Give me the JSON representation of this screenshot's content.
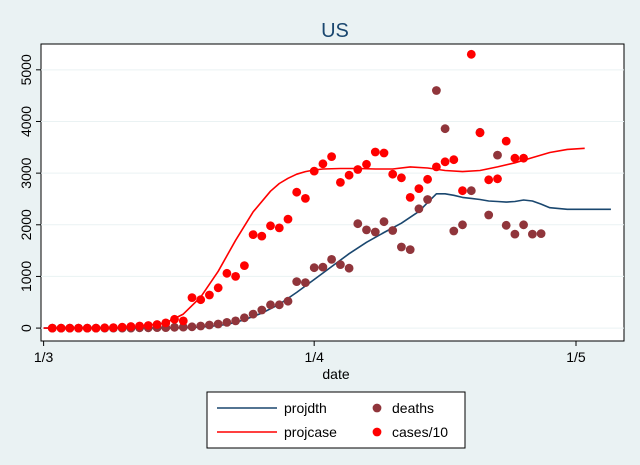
{
  "chart_data": {
    "type": "line",
    "title": "US",
    "xlabel": "date",
    "ylabel": "",
    "x_ticks": [
      {
        "label": "1/3",
        "day": 0
      },
      {
        "label": "1/4",
        "day": 31
      },
      {
        "label": "1/5",
        "day": 61
      }
    ],
    "xlim": [
      -0.3,
      66.5
    ],
    "y_ticks": [
      0,
      1000,
      2000,
      3000,
      4000,
      5000
    ],
    "ylim": [
      -250,
      5500
    ],
    "grid": true,
    "legend_position": "bottom",
    "series": [
      {
        "name": "projdth",
        "kind": "line",
        "color": "#1a476f",
        "x": [
          0,
          5,
          10,
          15,
          17,
          19,
          21,
          23,
          25,
          27,
          29,
          31,
          33,
          35,
          37,
          39,
          41,
          43,
          44,
          45,
          46,
          47,
          48,
          49,
          50,
          51,
          52,
          53,
          54,
          55,
          56,
          57,
          58,
          60,
          62,
          64,
          65
        ],
        "y": [
          0,
          0,
          0,
          3,
          10,
          30,
          70,
          160,
          290,
          460,
          690,
          940,
          1190,
          1440,
          1660,
          1850,
          2030,
          2260,
          2430,
          2600,
          2600,
          2570,
          2530,
          2510,
          2490,
          2460,
          2450,
          2440,
          2450,
          2480,
          2460,
          2400,
          2330,
          2300,
          2300,
          2300,
          2300
        ]
      },
      {
        "name": "deaths",
        "kind": "scatter",
        "color": "#90353b",
        "x": [
          1,
          2,
          3,
          4,
          5,
          6,
          7,
          8,
          9,
          10,
          11,
          12,
          13,
          14,
          15,
          16,
          17,
          18,
          19,
          20,
          21,
          22,
          23,
          24,
          25,
          26,
          27,
          28,
          29,
          30,
          31,
          32,
          33,
          34,
          35,
          36,
          37,
          38,
          39,
          40,
          41,
          42,
          43,
          44,
          45,
          46,
          47,
          48,
          49,
          50,
          51,
          52,
          53,
          54,
          55,
          56,
          57
        ],
        "y": [
          0,
          0,
          0,
          0,
          0,
          0,
          0,
          0,
          0,
          0,
          5,
          5,
          10,
          10,
          15,
          20,
          25,
          40,
          60,
          80,
          110,
          140,
          200,
          270,
          350,
          450,
          450,
          520,
          900,
          880,
          1170,
          1180,
          1330,
          1230,
          1160,
          2020,
          1900,
          1860,
          2060,
          1890,
          1570,
          1520,
          2310,
          2490,
          4600,
          3860,
          1880,
          2000,
          2660,
          3790,
          2190,
          3350,
          1990,
          1820,
          2000,
          1820,
          1830
        ]
      },
      {
        "name": "projcase",
        "kind": "line",
        "color": "#ff0000",
        "x": [
          0,
          5,
          10,
          14,
          16,
          18,
          20,
          22,
          24,
          26,
          27,
          28,
          29,
          30,
          31,
          32,
          34,
          36,
          38,
          40,
          42,
          44,
          46,
          48,
          50,
          52,
          54,
          56,
          58,
          60,
          62
        ],
        "y": [
          0,
          0,
          10,
          100,
          270,
          600,
          1100,
          1700,
          2250,
          2650,
          2800,
          2900,
          2980,
          3030,
          3060,
          3080,
          3090,
          3090,
          3080,
          3080,
          3120,
          3100,
          3050,
          3030,
          3050,
          3120,
          3200,
          3300,
          3400,
          3460,
          3480
        ]
      },
      {
        "name": "cases/10",
        "kind": "scatter",
        "color": "#ff0000",
        "x": [
          1,
          2,
          3,
          4,
          5,
          6,
          7,
          8,
          9,
          10,
          11,
          12,
          13,
          14,
          15,
          16,
          17,
          18,
          19,
          20,
          21,
          22,
          23,
          24,
          25,
          26,
          27,
          28,
          29,
          30,
          31,
          32,
          33,
          34,
          35,
          36,
          37,
          38,
          39,
          40,
          41,
          42,
          43,
          44,
          45,
          46,
          47,
          48,
          49,
          50,
          51,
          52,
          53,
          54,
          55
        ],
        "y": [
          0,
          0,
          0,
          0,
          0,
          0,
          5,
          10,
          20,
          30,
          40,
          50,
          70,
          100,
          170,
          140,
          590,
          550,
          640,
          780,
          1060,
          1000,
          1210,
          1810,
          1780,
          1980,
          1940,
          2110,
          2630,
          2510,
          3040,
          3180,
          3320,
          2820,
          2960,
          3070,
          3170,
          3410,
          3390,
          2980,
          2910,
          2530,
          2700,
          2880,
          3120,
          3220,
          3260,
          2660,
          5300,
          3780,
          2870,
          2890,
          3620,
          3290,
          3290
        ]
      }
    ]
  }
}
